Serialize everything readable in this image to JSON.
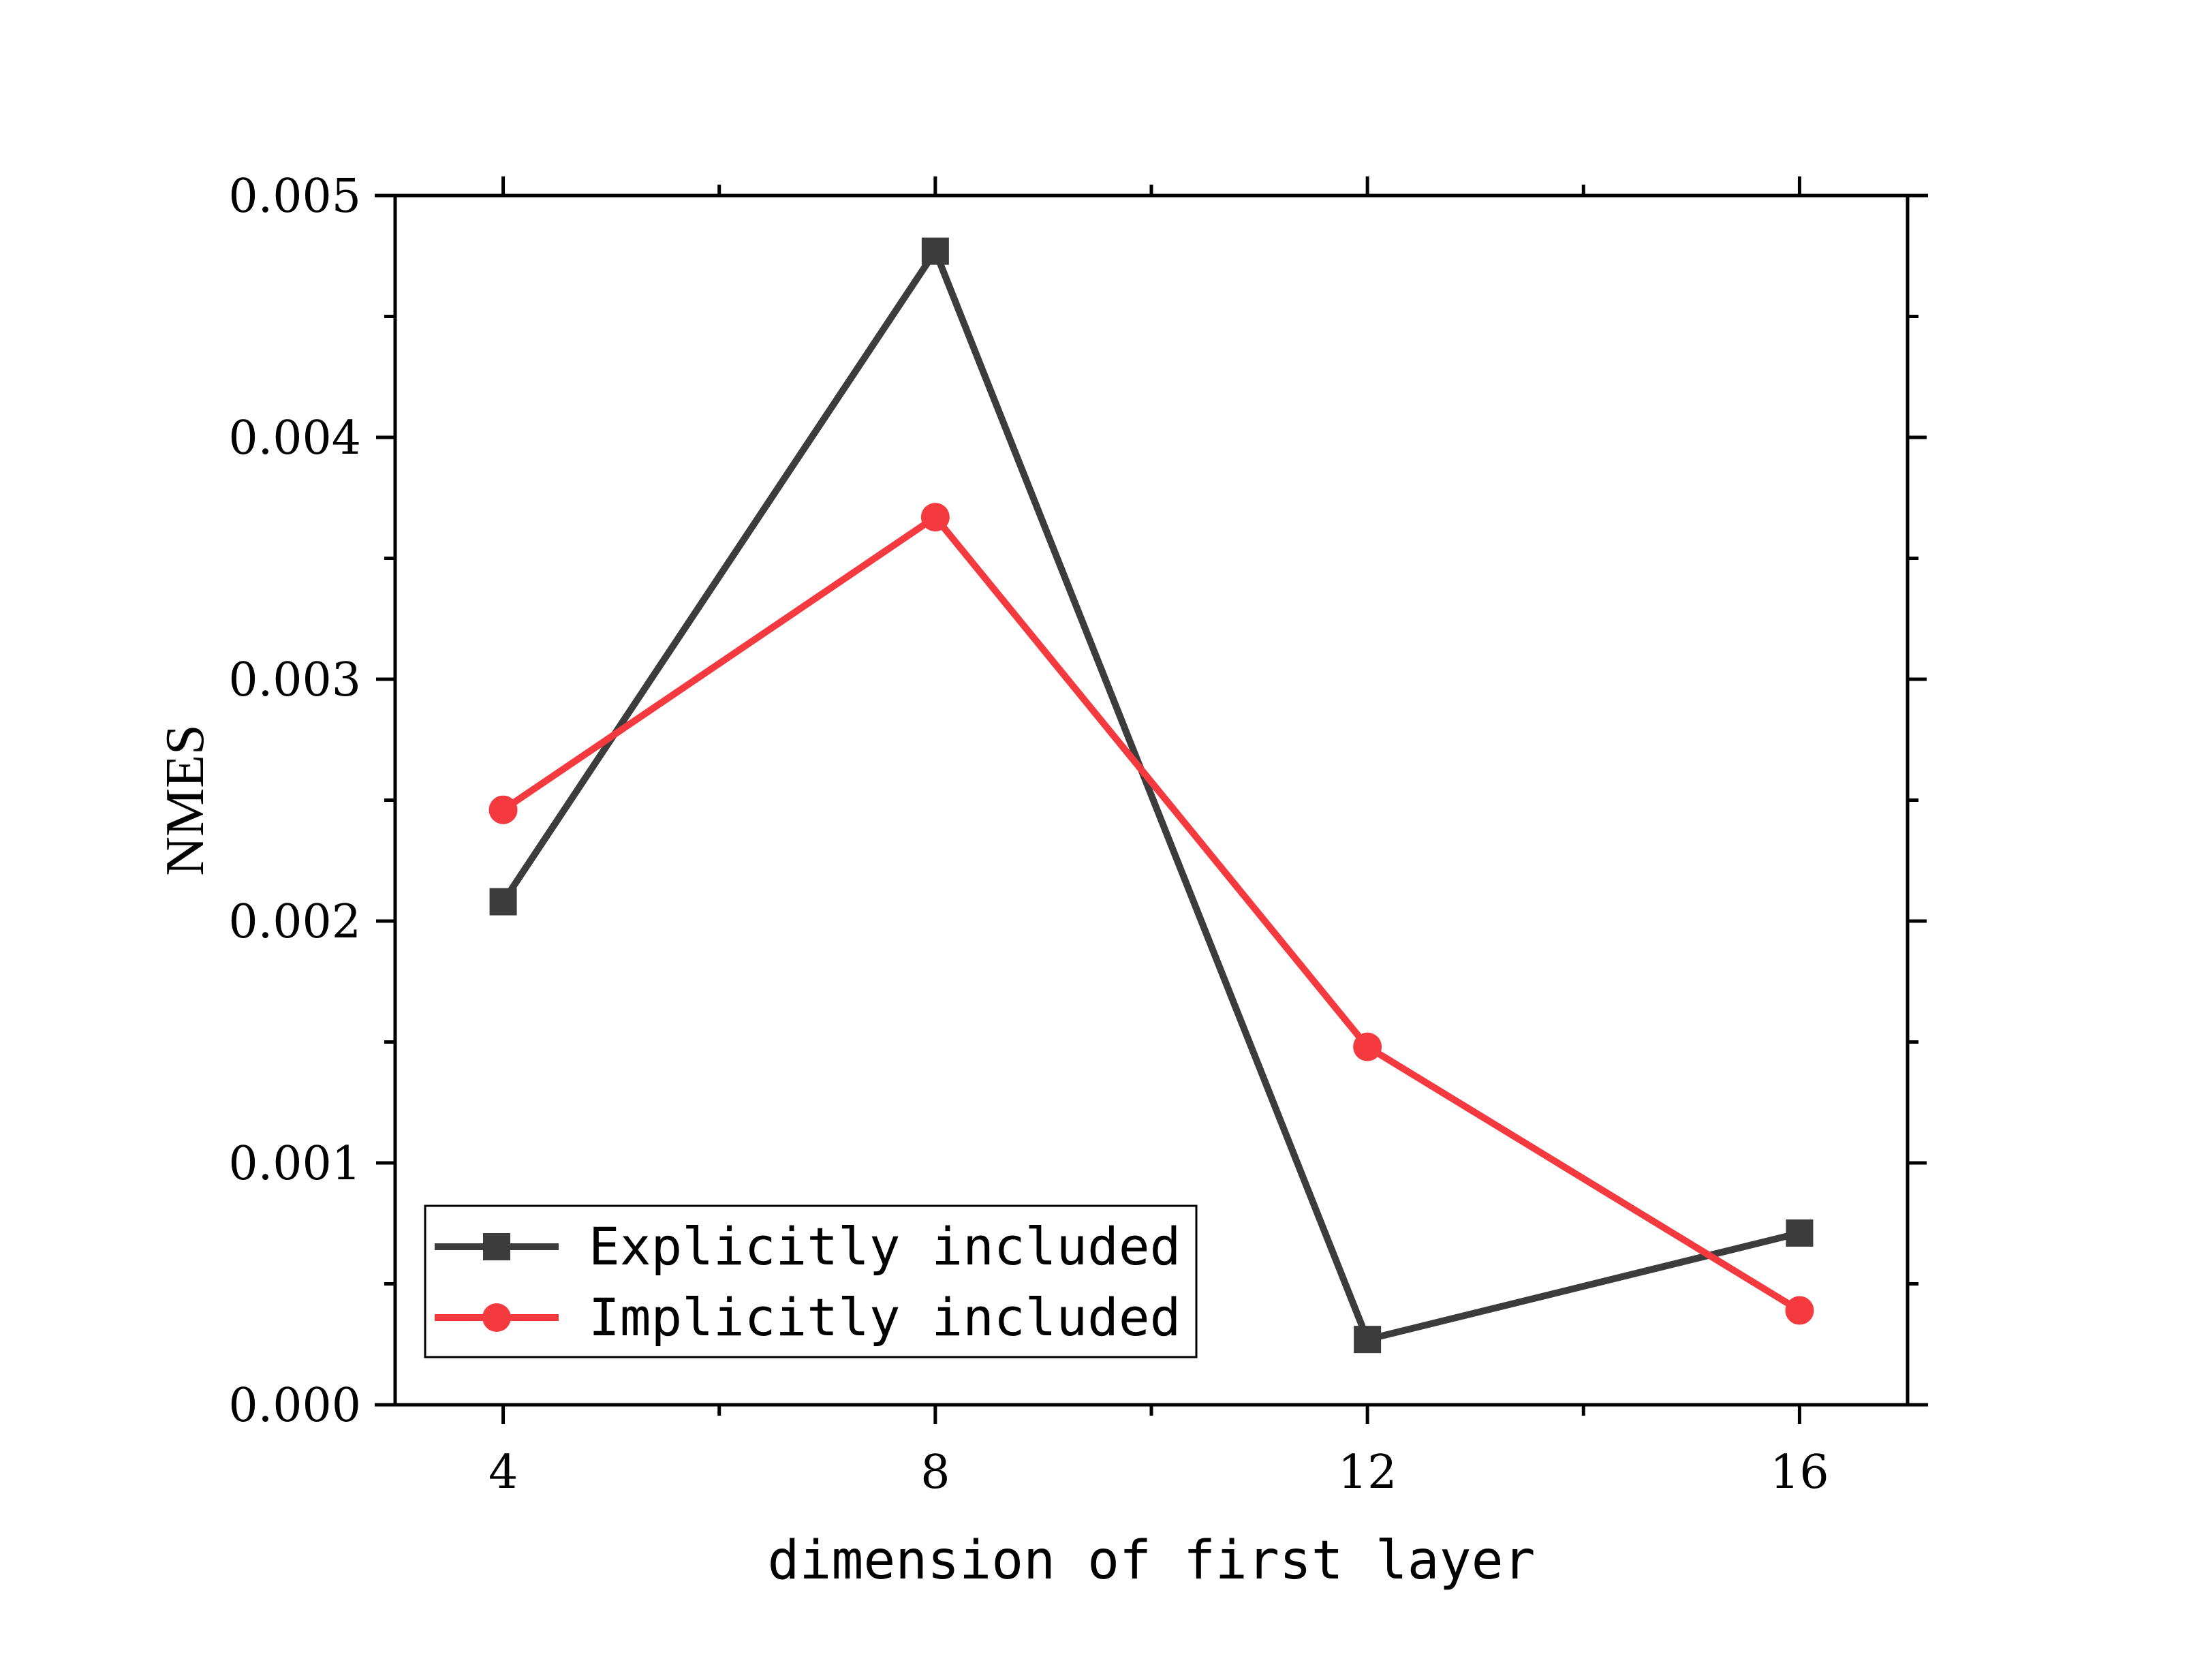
{
  "chart_data": {
    "type": "line",
    "xlabel": "dimension of first layer",
    "ylabel": "NMES",
    "x": [
      4,
      8,
      12,
      16
    ],
    "xlim": [
      3,
      17
    ],
    "ylim": [
      0,
      0.005
    ],
    "xticks": [
      4,
      8,
      12,
      16
    ],
    "xtick_labels": [
      "4",
      "8",
      "12",
      "16"
    ],
    "yticks": [
      0,
      0.001,
      0.002,
      0.003,
      0.004,
      0.005
    ],
    "ytick_labels": [
      "0.000",
      "0.001",
      "0.002",
      "0.003",
      "0.004",
      "0.005"
    ],
    "grid": false,
    "legend_position": "bottom-left",
    "series": [
      {
        "name": "Explicitly included",
        "values": [
          0.00208,
          0.00477,
          0.00027,
          0.00071
        ],
        "color": "#3c3c3c",
        "marker": "square"
      },
      {
        "name": "Implicitly included",
        "values": [
          0.00246,
          0.00367,
          0.00148,
          0.00039
        ],
        "color": "#f53a3f",
        "marker": "circle"
      }
    ]
  }
}
